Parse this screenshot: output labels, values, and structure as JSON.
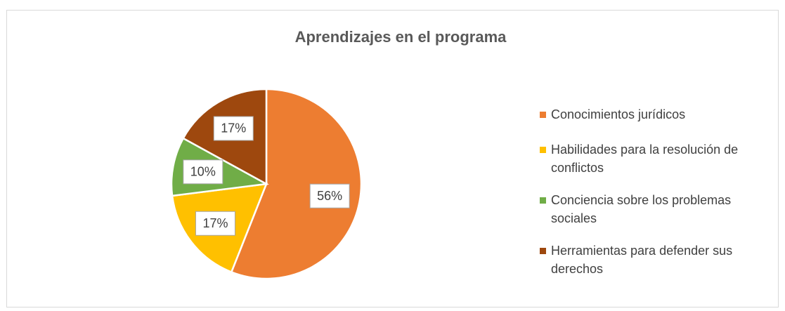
{
  "chart_data": {
    "type": "pie",
    "title": "Aprendizajes en el programa",
    "categories": [
      "Conocimientos jurídicos",
      "Habilidades para la resolución de conflictos",
      "Conciencia sobre los problemas sociales",
      "Herramientas para defender sus derechos"
    ],
    "values": [
      56,
      17,
      10,
      17
    ],
    "value_labels": [
      "56%",
      "17%",
      "10%",
      "17%"
    ],
    "colors": [
      "#ED7D31",
      "#FFC000",
      "#70AD47",
      "#9E480E"
    ],
    "legend": "right"
  }
}
